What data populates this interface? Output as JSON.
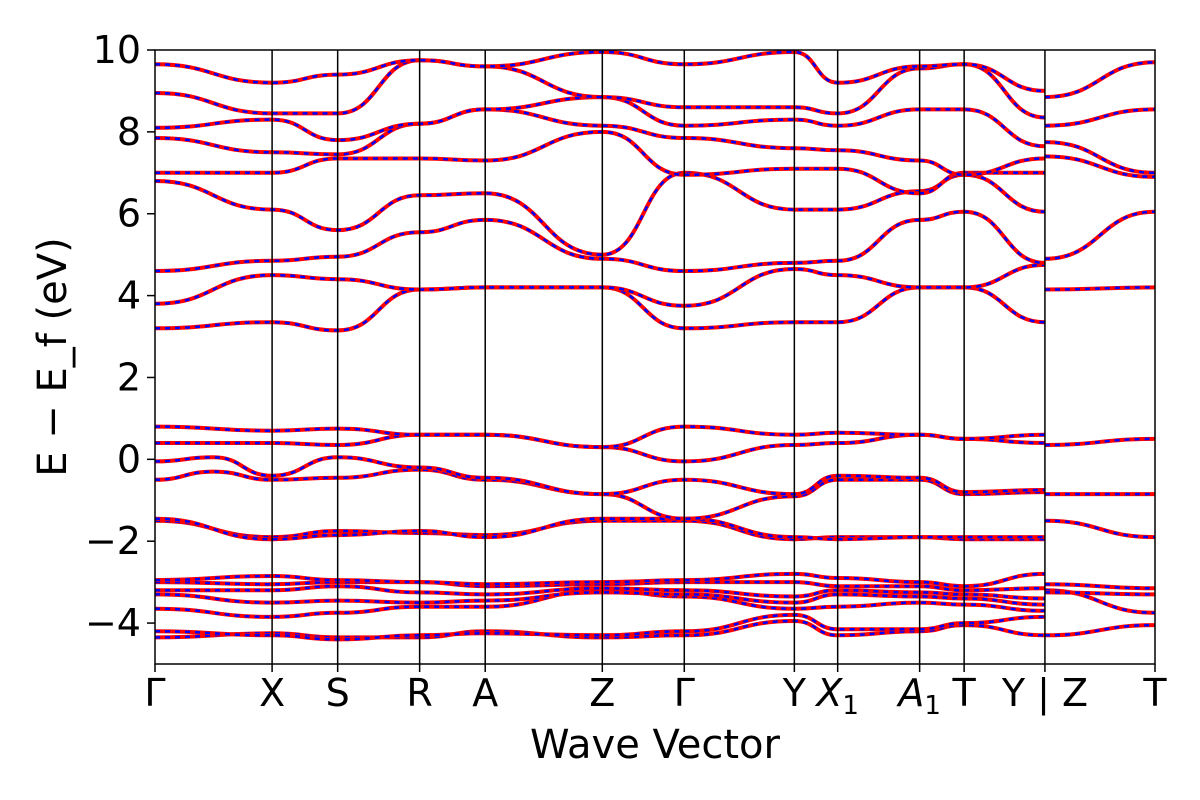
{
  "chart_data": {
    "type": "line",
    "title": "",
    "xlabel": "Wave Vector",
    "ylabel": "E − E_f (eV)",
    "ylim": [
      -5,
      10
    ],
    "y_ticks": [
      -4,
      -2,
      0,
      2,
      4,
      6,
      8,
      10
    ],
    "y_tick_labels": [
      "−4",
      "−2",
      "0",
      "2",
      "4",
      "6",
      "8",
      "10"
    ],
    "grid": false,
    "legend": "none",
    "colors": {
      "series_a": "#ff0000",
      "series_b": "#0000ff",
      "kline": "#000000"
    },
    "kpoints": [
      {
        "label": "Γ",
        "x": 0.0
      },
      {
        "label": "X",
        "x": 1.0
      },
      {
        "label": "S",
        "x": 1.56
      },
      {
        "label": "R",
        "x": 2.26
      },
      {
        "label": "A",
        "x": 2.82
      },
      {
        "label": "Z",
        "x": 3.82
      },
      {
        "label": "Γ",
        "x": 4.52
      },
      {
        "label": "Y",
        "x": 5.46
      },
      {
        "label": "X",
        "sub": "1",
        "x": 5.83
      },
      {
        "label": "A",
        "sub": "1",
        "x": 6.53
      },
      {
        "label": "T",
        "x": 6.91
      },
      {
        "label": "Y | Z",
        "x": 7.6
      },
      {
        "label": "T",
        "x": 8.54
      }
    ],
    "xlim": [
      0.0,
      8.54
    ],
    "bands": [
      {
        "segment": "main",
        "x": [
          0.0,
          1.0,
          1.56,
          2.26,
          2.82,
          3.82,
          4.52,
          5.46,
          5.83,
          6.53,
          6.91,
          7.6
        ],
        "y": [
          -4.35,
          -4.25,
          -4.35,
          -4.35,
          -4.2,
          -4.35,
          -4.3,
          -3.95,
          -4.3,
          -4.2,
          -4.05,
          -4.3
        ]
      },
      {
        "segment": "main",
        "x": [
          0.0,
          1.0,
          1.56,
          2.26,
          2.82,
          3.82,
          4.52,
          5.46,
          5.83,
          6.53,
          6.91,
          7.6
        ],
        "y": [
          -4.2,
          -4.3,
          -4.4,
          -4.3,
          -4.25,
          -4.3,
          -4.2,
          -3.8,
          -4.15,
          -4.15,
          -4.0,
          -3.85
        ]
      },
      {
        "segment": "main",
        "x": [
          0.0,
          1.0,
          1.56,
          2.26,
          2.82,
          3.82,
          4.52,
          5.46,
          5.83,
          6.53,
          6.91,
          7.6
        ],
        "y": [
          -3.65,
          -3.85,
          -3.75,
          -3.6,
          -3.6,
          -3.2,
          -3.35,
          -3.65,
          -3.6,
          -3.5,
          -3.55,
          -3.7
        ]
      },
      {
        "segment": "main",
        "x": [
          0.0,
          1.0,
          1.56,
          2.26,
          2.82,
          3.82,
          4.52,
          5.46,
          5.83,
          6.53,
          6.91,
          7.6
        ],
        "y": [
          -3.3,
          -3.5,
          -3.45,
          -3.5,
          -3.45,
          -3.25,
          -3.3,
          -3.5,
          -3.3,
          -3.35,
          -3.4,
          -3.55
        ]
      },
      {
        "segment": "main",
        "x": [
          0.0,
          1.0,
          1.56,
          2.26,
          2.82,
          3.82,
          4.52,
          5.46,
          5.83,
          6.53,
          6.91,
          7.6
        ],
        "y": [
          -3.2,
          -3.2,
          -3.1,
          -3.25,
          -3.3,
          -3.15,
          -3.2,
          -3.35,
          -3.2,
          -3.25,
          -3.3,
          -3.4
        ]
      },
      {
        "segment": "main",
        "x": [
          0.0,
          1.0,
          1.56,
          2.26,
          2.82,
          3.82,
          4.52,
          5.46,
          5.83,
          6.53,
          6.91,
          7.6
        ],
        "y": [
          -3.0,
          -3.05,
          -3.0,
          -3.0,
          -3.1,
          -3.05,
          -3.0,
          -3.0,
          -3.1,
          -3.1,
          -3.2,
          -3.15
        ]
      },
      {
        "segment": "main",
        "x": [
          0.0,
          1.0,
          1.56,
          2.26,
          2.82,
          3.82,
          4.52,
          5.46,
          5.83,
          6.53,
          6.91,
          7.6
        ],
        "y": [
          -2.95,
          -2.85,
          -2.95,
          -3.0,
          -3.05,
          -3.0,
          -2.95,
          -2.8,
          -2.9,
          -3.0,
          -3.1,
          -2.8
        ]
      },
      {
        "segment": "main",
        "x": [
          0.0,
          1.0,
          1.56,
          2.26,
          2.82,
          3.82,
          4.52,
          5.46,
          5.83,
          6.53,
          6.91,
          7.6
        ],
        "y": [
          -1.5,
          -1.9,
          -1.75,
          -1.8,
          -1.85,
          -1.5,
          -1.5,
          -1.95,
          -1.9,
          -1.9,
          -1.95,
          -1.95
        ]
      },
      {
        "segment": "main",
        "x": [
          0.0,
          1.0,
          1.56,
          2.26,
          2.82,
          3.82,
          4.52,
          5.46,
          5.83,
          6.53,
          6.91,
          7.6
        ],
        "y": [
          -1.45,
          -1.95,
          -1.85,
          -1.75,
          -1.9,
          -1.45,
          -1.45,
          -1.9,
          -1.95,
          -1.9,
          -1.9,
          -1.9
        ]
      },
      {
        "segment": "main",
        "x": [
          0.0,
          0.5,
          1.0,
          1.56,
          2.26,
          2.82,
          3.82,
          4.52,
          5.46,
          5.83,
          6.53,
          6.91,
          7.6
        ],
        "y": [
          -0.5,
          -0.3,
          -0.5,
          -0.45,
          -0.25,
          -0.5,
          -0.85,
          -1.45,
          -0.9,
          -0.5,
          -0.5,
          -0.85,
          -0.8
        ]
      },
      {
        "segment": "main",
        "x": [
          0.0,
          0.5,
          1.0,
          1.56,
          2.26,
          2.82,
          3.82,
          4.52,
          5.46,
          5.83,
          6.53,
          6.91,
          7.6
        ],
        "y": [
          -0.05,
          0.05,
          -0.4,
          0.05,
          -0.2,
          -0.45,
          -0.85,
          -0.5,
          -0.85,
          -0.4,
          -0.45,
          -0.8,
          -0.75
        ]
      },
      {
        "segment": "main",
        "x": [
          0.0,
          1.0,
          1.56,
          2.26,
          2.82,
          3.82,
          4.52,
          5.46,
          5.83,
          6.53,
          6.91,
          7.6
        ],
        "y": [
          0.4,
          0.4,
          0.35,
          0.6,
          0.6,
          0.3,
          -0.05,
          0.35,
          0.4,
          0.6,
          0.5,
          0.4
        ]
      },
      {
        "segment": "main",
        "x": [
          0.0,
          1.0,
          1.56,
          2.26,
          2.82,
          3.82,
          4.52,
          5.46,
          5.83,
          6.53,
          6.91,
          7.6
        ],
        "y": [
          0.8,
          0.7,
          0.75,
          0.6,
          0.6,
          0.3,
          0.8,
          0.6,
          0.65,
          0.6,
          0.5,
          0.6
        ]
      },
      {
        "segment": "main",
        "x": [
          0.0,
          1.0,
          1.56,
          2.26,
          2.82,
          3.82,
          4.52,
          5.46,
          5.83,
          6.53,
          6.91,
          7.6
        ],
        "y": [
          3.2,
          3.35,
          3.15,
          4.15,
          4.2,
          4.2,
          3.2,
          3.35,
          3.35,
          4.2,
          4.2,
          3.35
        ]
      },
      {
        "segment": "main",
        "x": [
          0.0,
          1.0,
          1.56,
          2.26,
          2.82,
          3.82,
          4.52,
          5.46,
          5.83,
          6.53,
          6.91,
          7.6
        ],
        "y": [
          3.8,
          4.5,
          4.4,
          4.15,
          4.2,
          4.2,
          3.75,
          4.65,
          4.5,
          4.2,
          4.2,
          4.75
        ]
      },
      {
        "segment": "main",
        "x": [
          0.0,
          1.0,
          1.56,
          2.26,
          2.82,
          3.82,
          4.52,
          5.46,
          5.83,
          6.53,
          6.91,
          7.6
        ],
        "y": [
          4.6,
          4.85,
          4.95,
          5.55,
          5.85,
          4.9,
          4.6,
          4.8,
          4.85,
          5.85,
          6.05,
          4.8
        ]
      },
      {
        "segment": "main",
        "x": [
          0.0,
          1.0,
          1.56,
          2.26,
          2.82,
          3.82,
          4.52,
          5.46,
          5.83,
          6.53,
          6.91,
          7.6
        ],
        "y": [
          6.8,
          6.1,
          5.6,
          6.45,
          6.5,
          5.0,
          7.0,
          6.1,
          6.1,
          6.55,
          6.95,
          6.05
        ]
      },
      {
        "segment": "main",
        "x": [
          0.0,
          1.0,
          1.56,
          2.26,
          2.82,
          3.82,
          4.52,
          5.46,
          5.83,
          6.53,
          6.91,
          7.6
        ],
        "y": [
          7.0,
          7.0,
          7.35,
          7.35,
          7.3,
          8.0,
          6.95,
          7.1,
          7.1,
          6.5,
          7.0,
          7.0
        ]
      },
      {
        "segment": "main",
        "x": [
          0.0,
          1.0,
          1.56,
          2.26,
          2.82,
          3.82,
          4.52,
          5.46,
          5.83,
          6.53,
          6.91,
          7.6
        ],
        "y": [
          7.85,
          7.5,
          7.45,
          8.2,
          8.55,
          8.15,
          7.85,
          7.6,
          7.55,
          7.3,
          6.95,
          7.35
        ]
      },
      {
        "segment": "main",
        "x": [
          0.0,
          1.0,
          1.56,
          2.26,
          2.82,
          3.82,
          4.52,
          5.46,
          5.83,
          6.53,
          6.91,
          7.6
        ],
        "y": [
          8.1,
          8.3,
          7.8,
          8.2,
          8.55,
          8.85,
          8.15,
          8.3,
          8.15,
          8.55,
          8.55,
          7.65
        ]
      },
      {
        "segment": "main",
        "x": [
          0.0,
          1.0,
          1.56,
          2.26,
          2.82,
          3.82,
          4.52,
          5.46,
          5.83,
          6.53,
          6.91,
          7.6
        ],
        "y": [
          8.95,
          8.45,
          8.45,
          9.75,
          9.6,
          8.85,
          8.6,
          8.6,
          8.45,
          9.55,
          9.65,
          8.35
        ]
      },
      {
        "segment": "main",
        "x": [
          0.0,
          1.0,
          1.56,
          2.26,
          2.82,
          3.82,
          4.52,
          5.46,
          5.83,
          6.53,
          6.91,
          7.6
        ],
        "y": [
          9.65,
          9.2,
          9.4,
          9.75,
          9.6,
          9.95,
          9.65,
          9.95,
          9.2,
          9.6,
          9.65,
          9.0
        ]
      },
      {
        "segment": "tail",
        "x": [
          7.6,
          8.54
        ],
        "y": [
          -4.3,
          -4.05
        ]
      },
      {
        "segment": "tail",
        "x": [
          7.6,
          8.54
        ],
        "y": [
          -3.2,
          -3.75
        ]
      },
      {
        "segment": "tail",
        "x": [
          7.6,
          8.54
        ],
        "y": [
          -3.05,
          -3.15
        ]
      },
      {
        "segment": "tail",
        "x": [
          7.6,
          8.54
        ],
        "y": [
          -3.25,
          -3.3
        ]
      },
      {
        "segment": "tail",
        "x": [
          7.6,
          8.54
        ],
        "y": [
          -1.5,
          -1.9
        ]
      },
      {
        "segment": "tail",
        "x": [
          7.6,
          8.54
        ],
        "y": [
          -0.85,
          -0.85
        ]
      },
      {
        "segment": "tail",
        "x": [
          7.6,
          8.54
        ],
        "y": [
          0.35,
          0.5
        ]
      },
      {
        "segment": "tail",
        "x": [
          7.6,
          8.54
        ],
        "y": [
          4.15,
          4.2
        ]
      },
      {
        "segment": "tail",
        "x": [
          7.6,
          8.54
        ],
        "y": [
          4.9,
          6.05
        ]
      },
      {
        "segment": "tail",
        "x": [
          7.6,
          8.54
        ],
        "y": [
          7.4,
          6.9
        ]
      },
      {
        "segment": "tail",
        "x": [
          7.6,
          8.54
        ],
        "y": [
          7.75,
          7.0
        ]
      },
      {
        "segment": "tail",
        "x": [
          7.6,
          8.54
        ],
        "y": [
          8.15,
          8.55
        ]
      },
      {
        "segment": "tail",
        "x": [
          7.6,
          8.54
        ],
        "y": [
          8.85,
          9.7
        ]
      }
    ]
  }
}
